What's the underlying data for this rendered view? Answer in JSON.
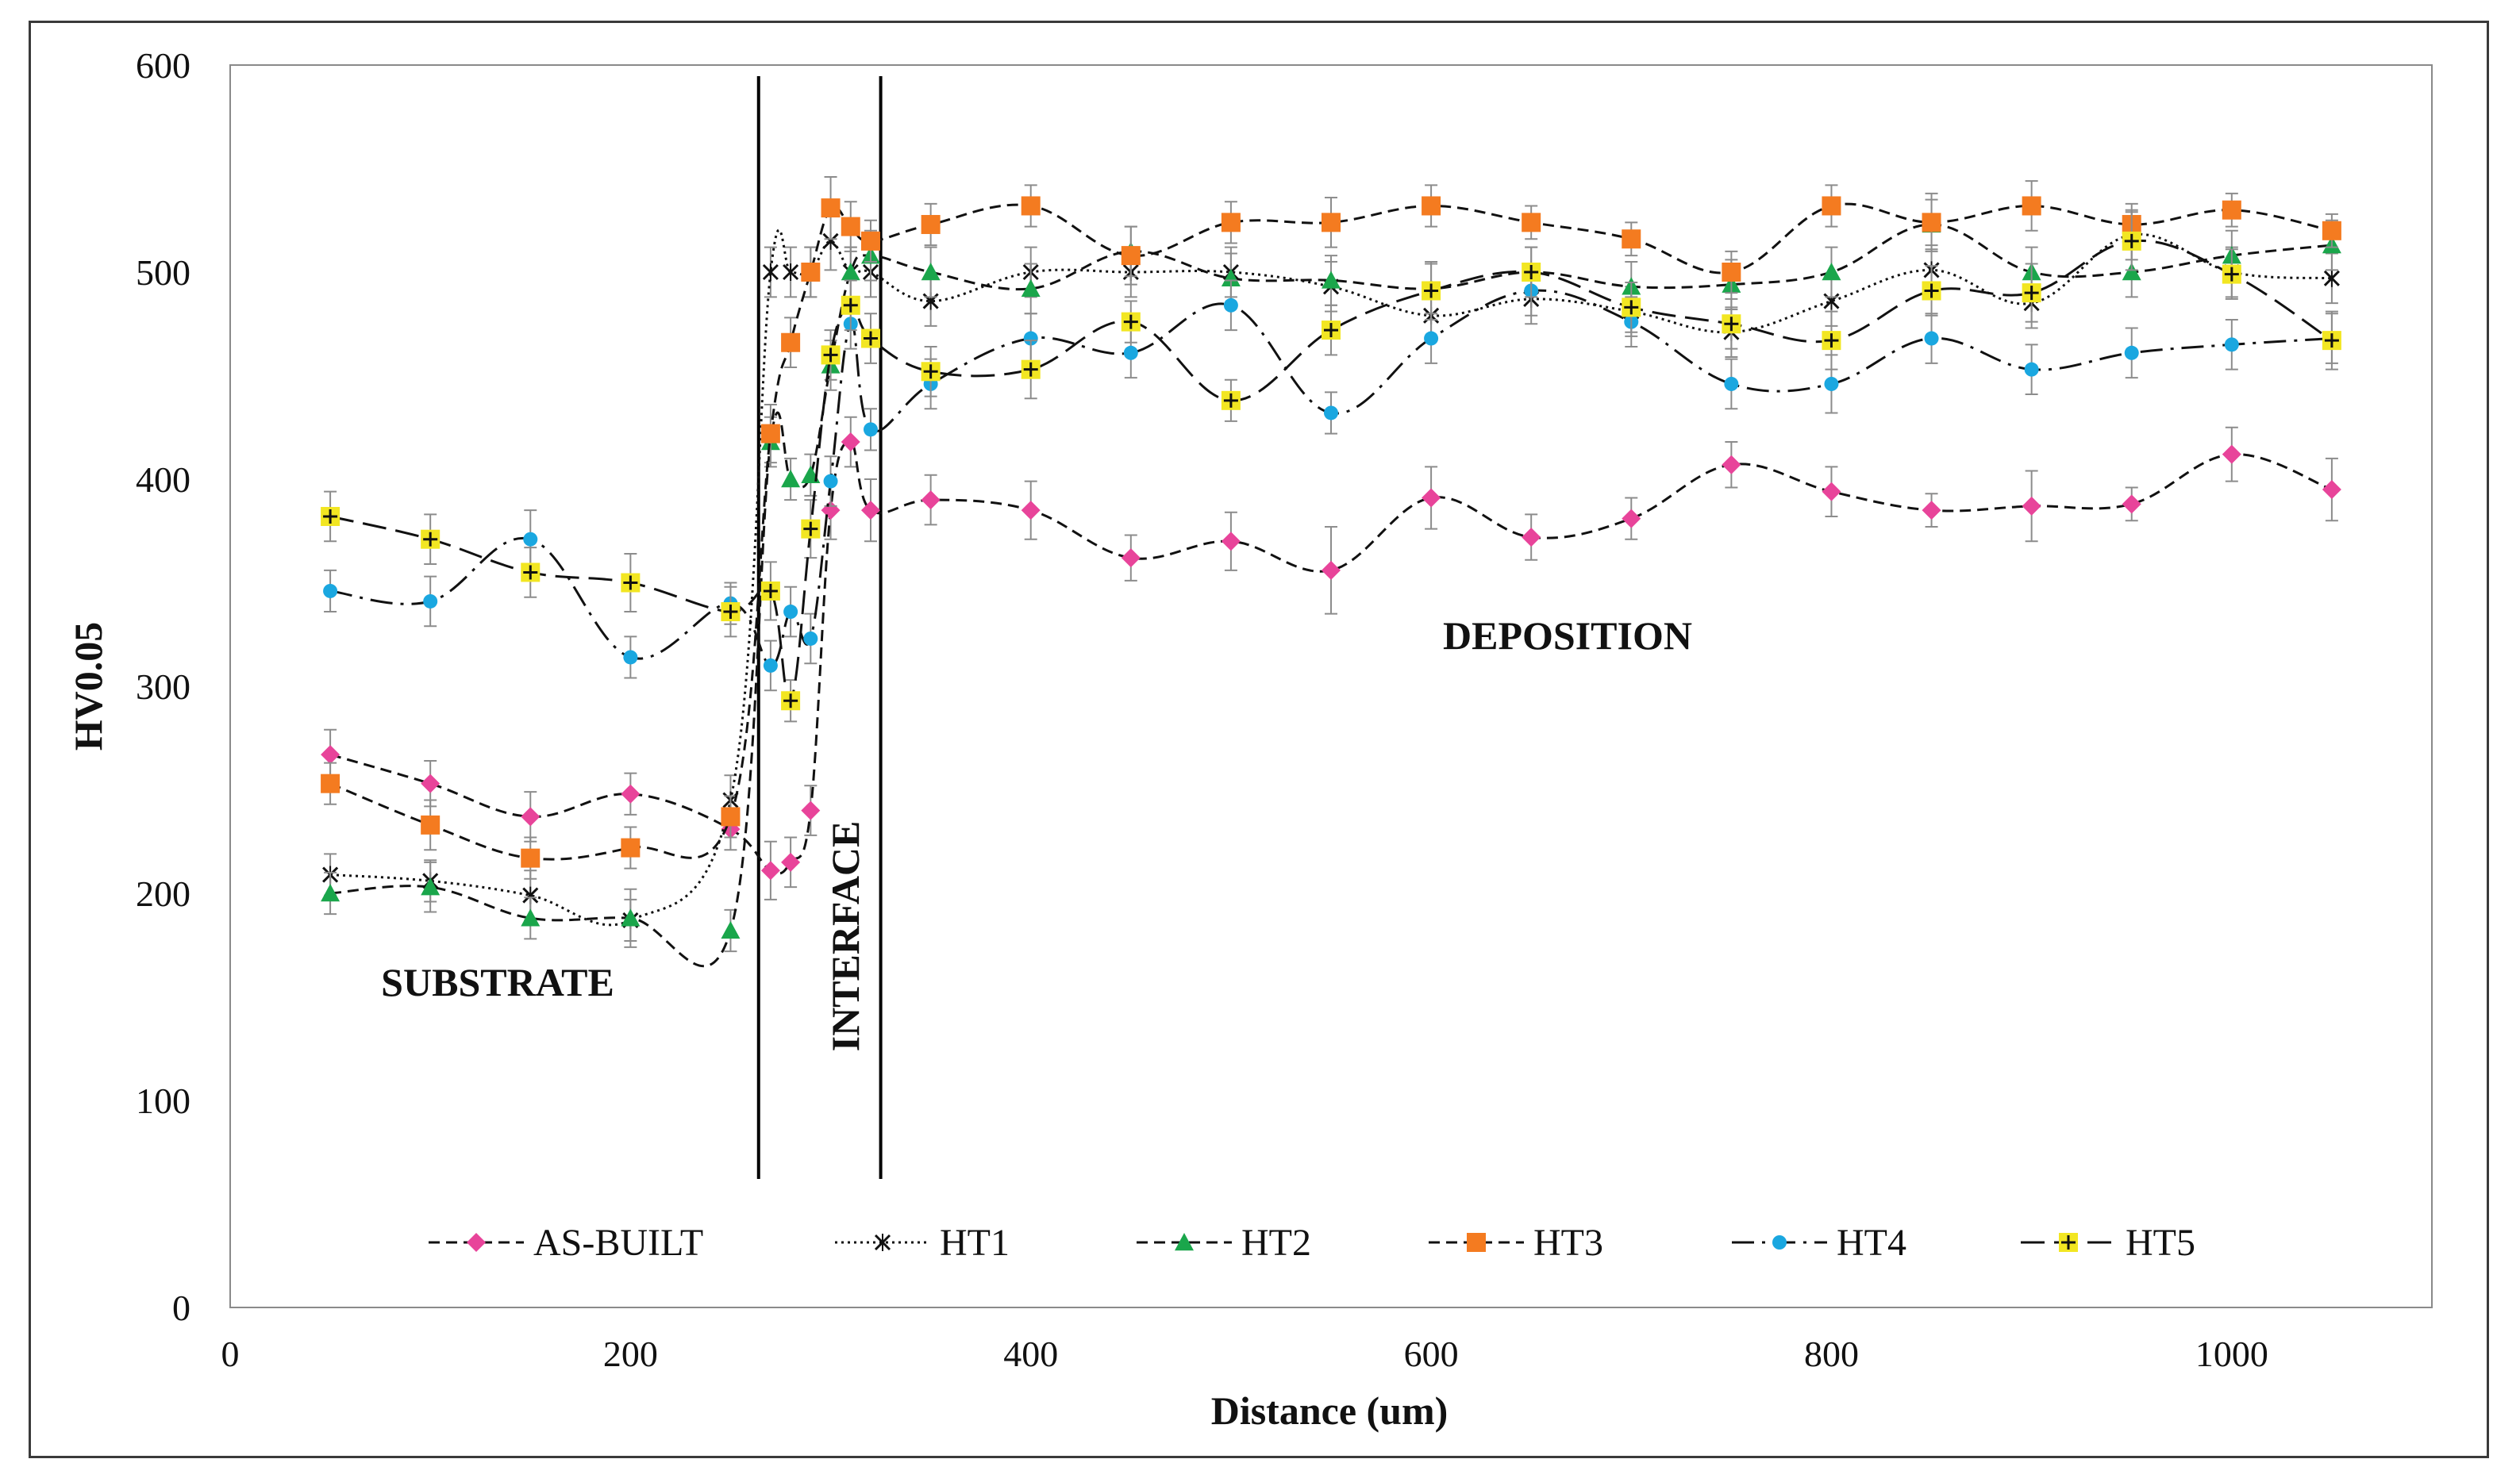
{
  "chart_data": {
    "type": "line",
    "title": "",
    "xlabel": "Distance (um)",
    "ylabel": "HV0.05",
    "xlim": [
      0,
      1100
    ],
    "ylim": [
      0,
      600
    ],
    "xticks": [
      "0",
      "200",
      "400",
      "600",
      "800",
      "1000"
    ],
    "yticks": [
      "0",
      "100",
      "200",
      "300",
      "400",
      "500",
      "600"
    ],
    "grid": false,
    "legend_position": "bottom-inside",
    "region_labels": {
      "substrate": "SUBSTRATE",
      "interface": "INTERFACE",
      "deposition": "DEPOSITION"
    },
    "interface_bounds": [
      264,
      325
    ],
    "series": [
      {
        "name": "AS-BUILT",
        "color": "#e8449a",
        "marker": "diamond",
        "dash": "dashed",
        "x": [
          50,
          100,
          150,
          200,
          250,
          270,
          280,
          290,
          300,
          310,
          320,
          350,
          400,
          450,
          500,
          550,
          600,
          650,
          700,
          750,
          800,
          850,
          900,
          950,
          1000,
          1050
        ],
        "y": [
          267,
          253,
          237,
          248,
          231,
          211,
          215,
          240,
          385,
          418,
          385,
          390,
          385,
          362,
          370,
          356,
          391,
          372,
          381,
          407,
          394,
          385,
          387,
          388,
          412,
          395
        ],
        "err": [
          12,
          11,
          12,
          10,
          10,
          14,
          12,
          12,
          14,
          12,
          15,
          12,
          14,
          11,
          14,
          21,
          15,
          11,
          10,
          11,
          12,
          8,
          17,
          8,
          13,
          15
        ]
      },
      {
        "name": "HT1",
        "color": "#111111",
        "marker": "cross",
        "dash": "dotted",
        "x": [
          50,
          100,
          150,
          200,
          250,
          270,
          280,
          290,
          300,
          310,
          320,
          350,
          400,
          450,
          500,
          550,
          600,
          650,
          700,
          750,
          800,
          850,
          900,
          950,
          1000,
          1050
        ],
        "y": [
          209,
          206,
          199,
          187,
          245,
          500,
          500,
          500,
          515,
          500,
          500,
          486,
          500,
          500,
          500,
          493,
          479,
          487,
          481,
          471,
          486,
          501,
          485,
          518,
          500,
          497
        ],
        "err": [
          10,
          10,
          12,
          10,
          12,
          12,
          12,
          12,
          14,
          12,
          12,
          12,
          12,
          12,
          12,
          12,
          12,
          12,
          12,
          12,
          12,
          12,
          12,
          12,
          12,
          12
        ]
      },
      {
        "name": "HT2",
        "color": "#1aa64b",
        "marker": "triangle",
        "dash": "dashed",
        "x": [
          50,
          100,
          150,
          200,
          250,
          270,
          280,
          290,
          300,
          310,
          320,
          350,
          400,
          450,
          500,
          550,
          600,
          650,
          700,
          750,
          800,
          850,
          900,
          950,
          1000,
          1050
        ],
        "y": [
          200,
          203,
          188,
          188,
          182,
          418,
          400,
          402,
          455,
          500,
          508,
          500,
          492,
          510,
          497,
          496,
          492,
          500,
          493,
          494,
          500,
          523,
          500,
          500,
          508,
          513
        ],
        "err": [
          10,
          12,
          10,
          14,
          10,
          12,
          10,
          10,
          12,
          12,
          12,
          12,
          12,
          12,
          12,
          12,
          12,
          12,
          12,
          12,
          12,
          12,
          12,
          12,
          12,
          12
        ]
      },
      {
        "name": "HT3",
        "color": "#f47b20",
        "marker": "square",
        "dash": "dashed",
        "x": [
          50,
          100,
          150,
          200,
          250,
          270,
          280,
          290,
          300,
          310,
          320,
          350,
          400,
          450,
          500,
          550,
          600,
          650,
          700,
          750,
          800,
          850,
          900,
          950,
          1000,
          1050
        ],
        "y": [
          253,
          233,
          217,
          222,
          237,
          422,
          466,
          500,
          531,
          522,
          515,
          523,
          532,
          508,
          524,
          524,
          532,
          524,
          516,
          500,
          532,
          524,
          532,
          523,
          530,
          520
        ],
        "err": [
          10,
          12,
          10,
          10,
          10,
          14,
          12,
          12,
          15,
          12,
          10,
          10,
          10,
          14,
          10,
          12,
          10,
          8,
          8,
          10,
          10,
          14,
          12,
          10,
          8,
          8
        ]
      },
      {
        "name": "HT4",
        "color": "#1aa7e0",
        "marker": "circle",
        "dash": "longdashdot",
        "x": [
          50,
          100,
          150,
          200,
          250,
          270,
          280,
          290,
          300,
          310,
          320,
          350,
          400,
          450,
          500,
          550,
          600,
          650,
          700,
          750,
          800,
          850,
          900,
          950,
          1000,
          1050
        ],
        "y": [
          346,
          341,
          371,
          314,
          340,
          310,
          336,
          323,
          399,
          475,
          424,
          446,
          468,
          461,
          484,
          432,
          468,
          491,
          476,
          446,
          446,
          468,
          453,
          461,
          465,
          468
        ],
        "err": [
          10,
          12,
          14,
          10,
          10,
          12,
          12,
          12,
          12,
          12,
          10,
          12,
          12,
          12,
          12,
          10,
          12,
          12,
          12,
          12,
          14,
          12,
          12,
          12,
          12,
          12
        ]
      },
      {
        "name": "HT5",
        "color": "#f2e622",
        "marker": "plus",
        "dash": "longdash",
        "x": [
          50,
          100,
          150,
          200,
          250,
          270,
          280,
          290,
          300,
          310,
          320,
          350,
          400,
          450,
          500,
          550,
          600,
          650,
          700,
          750,
          800,
          850,
          900,
          950,
          1000,
          1050
        ],
        "y": [
          382,
          371,
          355,
          350,
          336,
          346,
          293,
          376,
          460,
          484,
          468,
          452,
          453,
          476,
          438,
          472,
          491,
          500,
          483,
          475,
          467,
          491,
          490,
          515,
          499,
          467
        ],
        "err": [
          12,
          12,
          12,
          14,
          12,
          14,
          10,
          14,
          12,
          12,
          12,
          12,
          14,
          10,
          10,
          12,
          14,
          12,
          12,
          12,
          14,
          12,
          14,
          14,
          12,
          14
        ]
      }
    ]
  }
}
